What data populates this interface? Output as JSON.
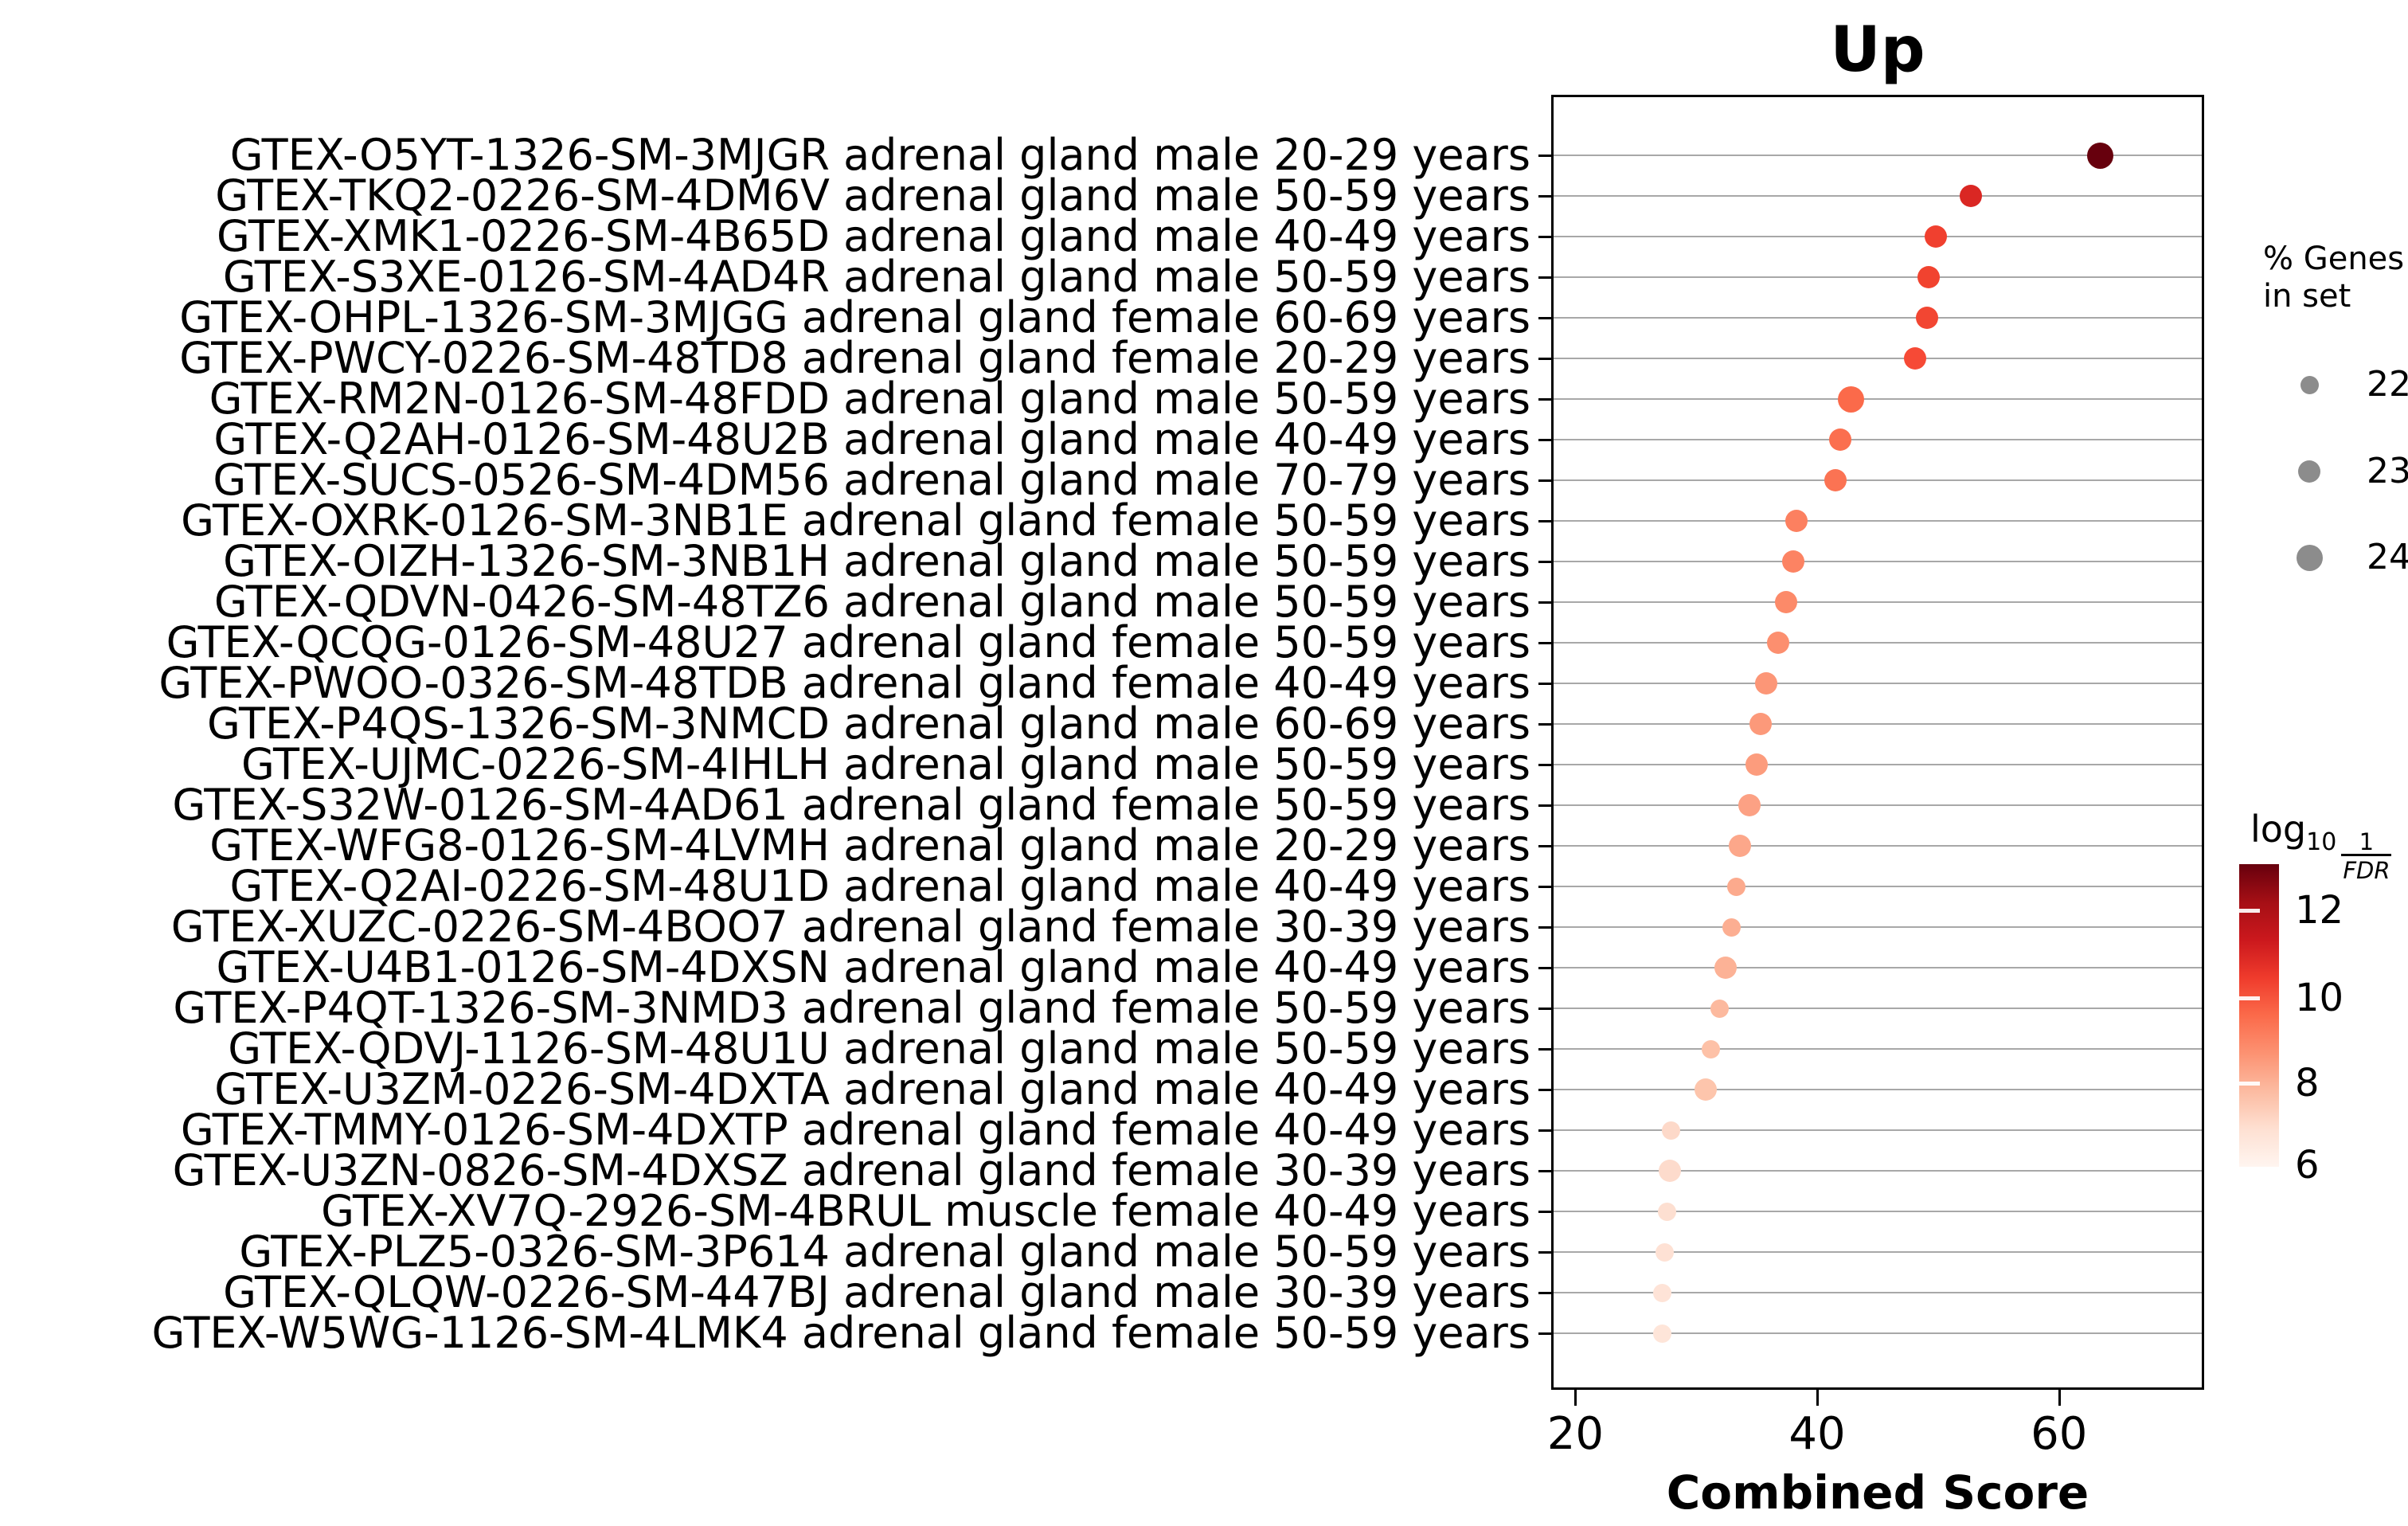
{
  "title": "Up",
  "x_axis": {
    "label": "Combined Score",
    "ticks": [
      "20",
      "40",
      "60"
    ]
  },
  "size_legend": {
    "title_line1": "% Genes",
    "title_line2": "in set",
    "values": [
      "22",
      "23",
      "24"
    ],
    "dot_color": "#8c8c8c"
  },
  "colorbar": {
    "label_log": "log",
    "label_base": "10",
    "label_numerator": "1",
    "label_denominator": "FDR",
    "ticks": [
      "12",
      "10",
      "8",
      "6"
    ]
  },
  "chart_data": {
    "type": "scatter",
    "title": "Up",
    "xlabel": "Combined Score",
    "xlim": [
      18,
      72
    ],
    "x_ticks": [
      20,
      40,
      60
    ],
    "grid": "horizontal-only",
    "legend_position": "right",
    "size_legend": {
      "title": "% Genes in set",
      "values": [
        22,
        23,
        24
      ]
    },
    "colorbar": {
      "label": "log10 1/FDR",
      "ticks": [
        6,
        8,
        10,
        12
      ],
      "range_est": [
        6.0,
        13.1
      ],
      "colormap": "Reds"
    },
    "points": [
      {
        "label": "GTEX-O5YT-1326-SM-3MJGR adrenal gland male 20-29 years",
        "combined_score": 63.4,
        "pct_genes_est": 24,
        "log10_inv_fdr_est": 13.1,
        "color": "#67000d"
      },
      {
        "label": "GTEX-TKQ2-0226-SM-4DM6V adrenal gland male 50-59 years",
        "combined_score": 52.7,
        "pct_genes_est": 23,
        "log10_inv_fdr_est": 11.2,
        "color": "#da2723"
      },
      {
        "label": "GTEX-XMK1-0226-SM-4B65D adrenal gland male 40-49 years",
        "combined_score": 49.8,
        "pct_genes_est": 23,
        "log10_inv_fdr_est": 10.6,
        "color": "#f0402f"
      },
      {
        "label": "GTEX-S3XE-0126-SM-4AD4R adrenal gland male 50-59 years",
        "combined_score": 49.2,
        "pct_genes_est": 23,
        "log10_inv_fdr_est": 10.5,
        "color": "#f1432f"
      },
      {
        "label": "GTEX-OHPL-1326-SM-3MJGG adrenal gland female 60-69 years",
        "combined_score": 49.1,
        "pct_genes_est": 23,
        "log10_inv_fdr_est": 10.5,
        "color": "#f24632"
      },
      {
        "label": "GTEX-PWCY-0226-SM-48TD8 adrenal gland female 20-29 years",
        "combined_score": 48.1,
        "pct_genes_est": 23,
        "log10_inv_fdr_est": 10.4,
        "color": "#f64a36"
      },
      {
        "label": "GTEX-RM2N-0126-SM-48FDD adrenal gland male 50-59 years",
        "combined_score": 42.8,
        "pct_genes_est": 24,
        "log10_inv_fdr_est": 9.7,
        "color": "#fb6a4a"
      },
      {
        "label": "GTEX-Q2AH-0126-SM-48U2B adrenal gland male 40-49 years",
        "combined_score": 41.9,
        "pct_genes_est": 23,
        "log10_inv_fdr_est": 9.6,
        "color": "#fb6f4f"
      },
      {
        "label": "GTEX-SUCS-0526-SM-4DM56 adrenal gland male 70-79 years",
        "combined_score": 41.5,
        "pct_genes_est": 23,
        "log10_inv_fdr_est": 9.5,
        "color": "#fb7353"
      },
      {
        "label": "GTEX-OXRK-0126-SM-3NB1E adrenal gland female 50-59 years",
        "combined_score": 38.3,
        "pct_genes_est": 23,
        "log10_inv_fdr_est": 9.1,
        "color": "#fc8060"
      },
      {
        "label": "GTEX-OIZH-1326-SM-3NB1H adrenal gland male 50-59 years",
        "combined_score": 38.0,
        "pct_genes_est": 23,
        "log10_inv_fdr_est": 9.0,
        "color": "#fc8363"
      },
      {
        "label": "GTEX-QDVN-0426-SM-48TZ6 adrenal gland male 50-59 years",
        "combined_score": 37.4,
        "pct_genes_est": 23,
        "log10_inv_fdr_est": 8.8,
        "color": "#fc8a69"
      },
      {
        "label": "GTEX-QCQG-0126-SM-48U27 adrenal gland female 50-59 years",
        "combined_score": 36.8,
        "pct_genes_est": 23,
        "log10_inv_fdr_est": 8.7,
        "color": "#fc8f6f"
      },
      {
        "label": "GTEX-PWOO-0326-SM-48TDB adrenal gland female 40-49 years",
        "combined_score": 35.8,
        "pct_genes_est": 23,
        "log10_inv_fdr_est": 8.5,
        "color": "#fc9677"
      },
      {
        "label": "GTEX-P4QS-1326-SM-3NMCD adrenal gland male 60-69 years",
        "combined_score": 35.3,
        "pct_genes_est": 23,
        "log10_inv_fdr_est": 8.4,
        "color": "#fc997a"
      },
      {
        "label": "GTEX-UJMC-0226-SM-4IHLH adrenal gland male 50-59 years",
        "combined_score": 35.0,
        "pct_genes_est": 23,
        "log10_inv_fdr_est": 8.3,
        "color": "#fc9c7d"
      },
      {
        "label": "GTEX-S32W-0126-SM-4AD61 adrenal gland female 50-59 years",
        "combined_score": 34.4,
        "pct_genes_est": 23,
        "log10_inv_fdr_est": 8.1,
        "color": "#fca184"
      },
      {
        "label": "GTEX-WFG8-0126-SM-4LVMH adrenal gland male 20-29 years",
        "combined_score": 33.6,
        "pct_genes_est": 23,
        "log10_inv_fdr_est": 7.9,
        "color": "#fca78a"
      },
      {
        "label": "GTEX-Q2AI-0226-SM-48U1D adrenal gland male 40-49 years",
        "combined_score": 33.3,
        "pct_genes_est": 22,
        "log10_inv_fdr_est": 7.8,
        "color": "#fcaa8d"
      },
      {
        "label": "GTEX-XUZC-0226-SM-4BOO7 adrenal gland female 30-39 years",
        "combined_score": 32.9,
        "pct_genes_est": 22,
        "log10_inv_fdr_est": 7.7,
        "color": "#fcae92"
      },
      {
        "label": "GTEX-U4B1-0126-SM-4DXSN adrenal gland male 40-49 years",
        "combined_score": 32.4,
        "pct_genes_est": 23,
        "log10_inv_fdr_est": 7.6,
        "color": "#fcb296"
      },
      {
        "label": "GTEX-P4QT-1326-SM-3NMD3 adrenal gland female 50-59 years",
        "combined_score": 31.9,
        "pct_genes_est": 22,
        "log10_inv_fdr_est": 7.4,
        "color": "#fcb99e"
      },
      {
        "label": "GTEX-QDVJ-1126-SM-48U1U adrenal gland male 50-59 years",
        "combined_score": 31.2,
        "pct_genes_est": 22,
        "log10_inv_fdr_est": 7.1,
        "color": "#fdc1a7"
      },
      {
        "label": "GTEX-U3ZM-0226-SM-4DXTA adrenal gland male 40-49 years",
        "combined_score": 30.8,
        "pct_genes_est": 23,
        "log10_inv_fdr_est": 7.0,
        "color": "#fdc5ac"
      },
      {
        "label": "GTEX-TMMY-0126-SM-4DXTP adrenal gland female 40-49 years",
        "combined_score": 27.9,
        "pct_genes_est": 22,
        "log10_inv_fdr_est": 6.4,
        "color": "#fdd9c9"
      },
      {
        "label": "GTEX-U3ZN-0826-SM-4DXSZ adrenal gland female 30-39 years",
        "combined_score": 27.8,
        "pct_genes_est": 23,
        "log10_inv_fdr_est": 6.3,
        "color": "#fddbcc"
      },
      {
        "label": "GTEX-XV7Q-2926-SM-4BRUL muscle female 40-49 years",
        "combined_score": 27.6,
        "pct_genes_est": 22,
        "log10_inv_fdr_est": 6.3,
        "color": "#fddfd1"
      },
      {
        "label": "GTEX-PLZ5-0326-SM-3P614 adrenal gland male 50-59 years",
        "combined_score": 27.4,
        "pct_genes_est": 22,
        "log10_inv_fdr_est": 6.2,
        "color": "#fee1d4"
      },
      {
        "label": "GTEX-QLQW-0226-SM-447BJ adrenal gland male 30-39 years",
        "combined_score": 27.2,
        "pct_genes_est": 22,
        "log10_inv_fdr_est": 6.1,
        "color": "#fee3d7"
      },
      {
        "label": "GTEX-W5WG-1126-SM-4LMK4 adrenal gland female 50-59 years",
        "combined_score": 27.2,
        "pct_genes_est": 22,
        "log10_inv_fdr_est": 6.0,
        "color": "#fee5d9"
      }
    ]
  }
}
